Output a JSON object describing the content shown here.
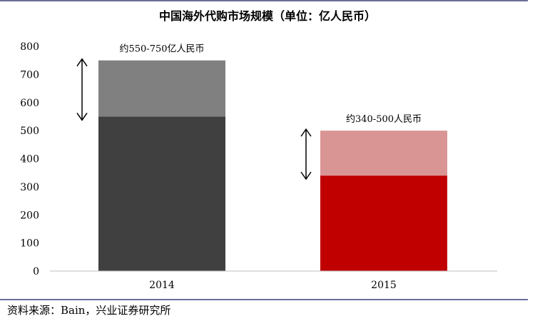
{
  "chart_data": {
    "type": "bar",
    "stacked": true,
    "title": "中国海外代购市场规模（单位：亿人民币）",
    "categories": [
      "2014",
      "2015"
    ],
    "series": [
      {
        "values": [
          550,
          340
        ],
        "colors": [
          "#404040",
          "#c00000"
        ]
      },
      {
        "values": [
          200,
          160
        ],
        "colors": [
          "#808080",
          "#d99594"
        ]
      }
    ],
    "annotations": [
      "约550-750亿人民币",
      "约340-500人民币"
    ],
    "range_arrows": [
      [
        550,
        750
      ],
      [
        340,
        500
      ]
    ],
    "ylim": [
      0,
      800
    ],
    "yticks": [
      0,
      100,
      200,
      300,
      400,
      500,
      600,
      700,
      800
    ],
    "grid": false,
    "legend": "none"
  },
  "source": "资料来源：Bain，兴业证券研究所",
  "colors": {
    "rule": "#6e6e9a"
  }
}
